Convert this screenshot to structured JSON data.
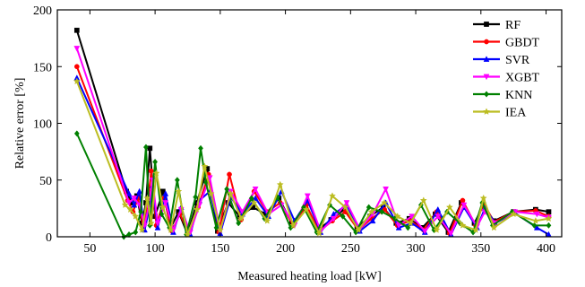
{
  "chart_data": {
    "type": "line",
    "title": "",
    "xlabel": "Measured heating load [kW]",
    "ylabel": "Relative error [%]",
    "xlim": [
      25,
      412
    ],
    "ylim": [
      0,
      200
    ],
    "xticks": [
      50,
      100,
      150,
      200,
      250,
      300,
      350,
      400
    ],
    "yticks": [
      0,
      50,
      100,
      150,
      200
    ],
    "grid": false,
    "legend_position": "top-right",
    "series": [
      {
        "name": "RF",
        "color": "#000000",
        "marker": "square",
        "x": [
          40,
          78,
          82,
          86,
          90,
          93,
          96,
          100,
          106,
          112,
          118,
          125,
          132,
          140,
          148,
          156,
          165,
          175,
          185,
          195,
          205,
          215,
          225,
          235,
          245,
          255,
          265,
          275,
          285,
          295,
          305,
          315,
          325,
          335,
          345,
          352,
          360,
          375,
          392,
          402
        ],
        "y": [
          182,
          40,
          30,
          36,
          12,
          30,
          78,
          18,
          40,
          8,
          22,
          2,
          30,
          60,
          5,
          30,
          18,
          26,
          20,
          34,
          12,
          25,
          6,
          15,
          24,
          8,
          18,
          26,
          12,
          16,
          8,
          20,
          4,
          30,
          12,
          28,
          14,
          22,
          24,
          22
        ]
      },
      {
        "name": "GBDT",
        "color": "#ff0000",
        "marker": "circle",
        "x": [
          40,
          79,
          83,
          87,
          91,
          94,
          97,
          101,
          107,
          113,
          119,
          126,
          133,
          141,
          149,
          157,
          166,
          176,
          186,
          196,
          206,
          216,
          226,
          236,
          246,
          256,
          266,
          276,
          286,
          296,
          306,
          316,
          326,
          336,
          346,
          352,
          360,
          375,
          392,
          402
        ],
        "y": [
          150,
          32,
          22,
          34,
          8,
          25,
          58,
          10,
          34,
          5,
          20,
          3,
          26,
          55,
          4,
          55,
          15,
          40,
          22,
          30,
          10,
          28,
          5,
          14,
          22,
          6,
          16,
          24,
          10,
          14,
          6,
          22,
          3,
          32,
          10,
          30,
          13,
          22,
          23,
          18
        ]
      },
      {
        "name": "SVR",
        "color": "#0000ff",
        "marker": "triangle-up",
        "x": [
          40,
          80,
          84,
          88,
          92,
          95,
          98,
          102,
          108,
          114,
          120,
          127,
          134,
          142,
          150,
          158,
          167,
          177,
          187,
          197,
          207,
          217,
          227,
          237,
          247,
          257,
          267,
          277,
          287,
          297,
          307,
          317,
          327,
          337,
          347,
          353,
          361,
          376,
          393,
          402
        ],
        "y": [
          140,
          38,
          28,
          40,
          6,
          22,
          45,
          8,
          38,
          4,
          26,
          2,
          32,
          40,
          3,
          35,
          20,
          34,
          18,
          40,
          14,
          32,
          4,
          20,
          28,
          5,
          14,
          30,
          8,
          12,
          4,
          24,
          2,
          26,
          8,
          25,
          12,
          21,
          8,
          2
        ]
      },
      {
        "name": "XGBT",
        "color": "#ff00ff",
        "marker": "triangle-down",
        "x": [
          40,
          80,
          84,
          88,
          92,
          95,
          98,
          102,
          108,
          114,
          120,
          127,
          134,
          142,
          150,
          158,
          167,
          177,
          187,
          197,
          207,
          217,
          227,
          237,
          247,
          257,
          267,
          277,
          287,
          297,
          307,
          317,
          327,
          337,
          347,
          353,
          361,
          376,
          393,
          402
        ],
        "y": [
          166,
          30,
          34,
          28,
          10,
          26,
          50,
          12,
          30,
          6,
          24,
          4,
          28,
          52,
          5,
          40,
          22,
          42,
          20,
          28,
          10,
          36,
          5,
          16,
          30,
          7,
          20,
          42,
          10,
          18,
          5,
          18,
          3,
          28,
          9,
          22,
          12,
          22,
          20,
          17
        ]
      },
      {
        "name": "KNN",
        "color": "#008000",
        "marker": "diamond",
        "x": [
          40,
          76,
          80,
          85,
          89,
          93,
          96,
          100,
          105,
          111,
          117,
          124,
          131,
          135,
          139,
          147,
          155,
          164,
          174,
          184,
          194,
          204,
          214,
          224,
          234,
          244,
          254,
          264,
          274,
          284,
          294,
          304,
          314,
          324,
          334,
          344,
          351,
          359,
          374,
          391,
          402
        ],
        "y": [
          91,
          0,
          2,
          4,
          22,
          79,
          10,
          66,
          20,
          8,
          50,
          2,
          35,
          78,
          48,
          8,
          42,
          12,
          34,
          16,
          35,
          8,
          26,
          4,
          28,
          18,
          4,
          26,
          22,
          16,
          8,
          28,
          6,
          22,
          12,
          4,
          30,
          10,
          22,
          10,
          10
        ]
      },
      {
        "name": "IEA",
        "color": "#bcbd22",
        "marker": "star",
        "x": [
          40,
          77,
          81,
          85,
          90,
          94,
          97,
          101,
          106,
          112,
          118,
          125,
          132,
          138,
          143,
          150,
          158,
          166,
          176,
          186,
          196,
          206,
          216,
          226,
          236,
          246,
          256,
          266,
          276,
          286,
          296,
          306,
          316,
          326,
          336,
          346,
          352,
          360,
          375,
          392,
          402
        ],
        "y": [
          137,
          28,
          24,
          18,
          6,
          34,
          12,
          56,
          26,
          6,
          40,
          2,
          24,
          62,
          38,
          6,
          38,
          16,
          30,
          14,
          46,
          10,
          24,
          3,
          36,
          26,
          6,
          22,
          30,
          18,
          12,
          32,
          6,
          26,
          10,
          6,
          34,
          8,
          20,
          14,
          16
        ]
      }
    ]
  }
}
